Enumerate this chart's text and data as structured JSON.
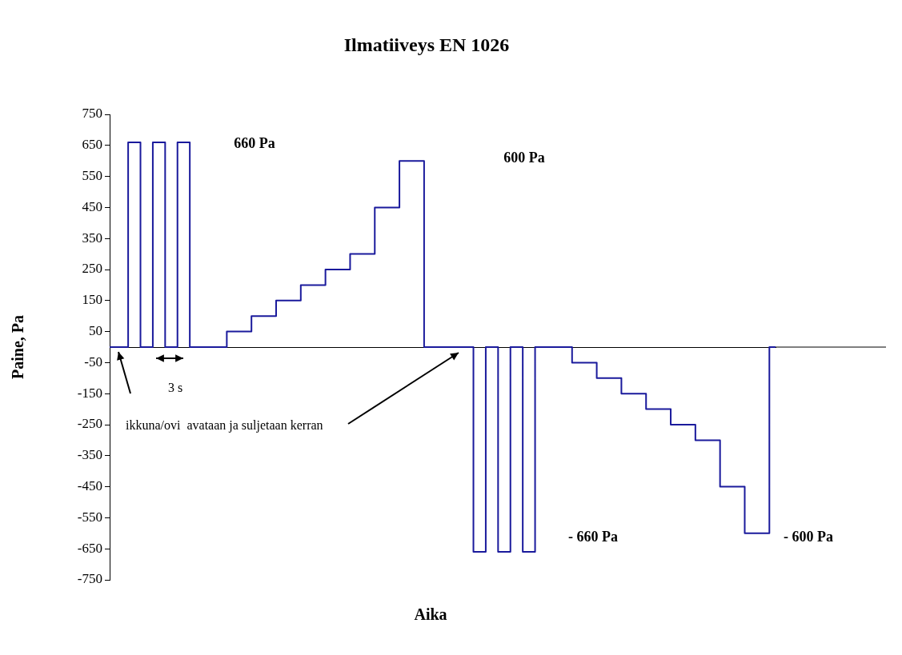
{
  "chart_data": {
    "type": "step",
    "title": "Ilmatiiveys EN 1026",
    "xlabel": "Aika",
    "ylabel": "Paine, Pa",
    "categories": [
      null,
      null,
      null,
      null,
      null,
      null,
      null,
      null,
      null,
      null,
      null,
      null,
      null,
      null,
      null,
      null,
      null,
      null,
      null,
      null,
      null,
      null,
      null,
      null,
      null,
      null,
      null,
      null,
      null,
      null,
      null,
      null,
      null,
      null,
      null,
      null,
      null,
      null,
      null,
      null,
      null,
      null,
      null,
      null,
      null,
      null,
      null,
      null,
      null,
      null,
      null,
      null,
      null,
      null,
      null
    ],
    "series": [
      {
        "color": "#1a1a9c",
        "values": [
          0,
          0,
          660,
          0,
          660,
          0,
          660,
          0,
          0,
          0,
          50,
          50,
          100,
          100,
          150,
          150,
          200,
          200,
          250,
          250,
          300,
          300,
          450,
          450,
          600,
          600,
          0,
          0,
          0,
          0,
          -660,
          0,
          -660,
          0,
          -660,
          0,
          0,
          0,
          -50,
          -50,
          -100,
          -100,
          -150,
          -150,
          -200,
          -200,
          -250,
          -250,
          -300,
          -300,
          -450,
          -450,
          -600,
          -600,
          0
        ]
      }
    ],
    "ylim": [
      -750,
      750
    ],
    "yticks": [
      -750,
      -650,
      -550,
      -450,
      -350,
      -250,
      -150,
      -50,
      50,
      150,
      250,
      350,
      450,
      550,
      650,
      750
    ],
    "annotations": [
      "660 Pa",
      "600 Pa",
      "- 660 Pa",
      "- 600 Pa",
      "3 s",
      "ikkuna/ovi  avataan ja suljetaan kerran"
    ],
    "grid": false,
    "legend": false,
    "marker": "none",
    "tick_labels": "y"
  }
}
